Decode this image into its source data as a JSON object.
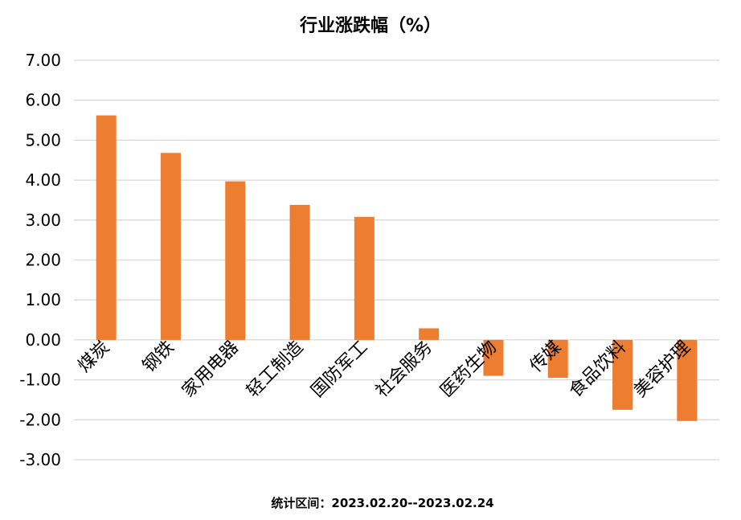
{
  "chart_data": {
    "type": "bar",
    "title": "行业涨跌幅（%）",
    "categories": [
      "煤炭",
      "钢铁",
      "家用电器",
      "轻工制造",
      "国防军工",
      "社会服务",
      "医药生物",
      "传媒",
      "食品饮料",
      "美容护理"
    ],
    "values": [
      5.62,
      4.68,
      3.97,
      3.38,
      3.08,
      0.29,
      -0.9,
      -0.95,
      -1.75,
      -2.03
    ],
    "ylim": [
      -3.0,
      7.0
    ],
    "yticks": [
      "7.00",
      "6.00",
      "5.00",
      "4.00",
      "3.00",
      "2.00",
      "1.00",
      "0.00",
      "-1.00",
      "-2.00",
      "-3.00"
    ],
    "grid": true,
    "legend": "none",
    "bar_color": "#ED7D31",
    "grid_color": "#D9D9D9"
  },
  "footer": "统计区间：2023.02.20--2023.02.24"
}
